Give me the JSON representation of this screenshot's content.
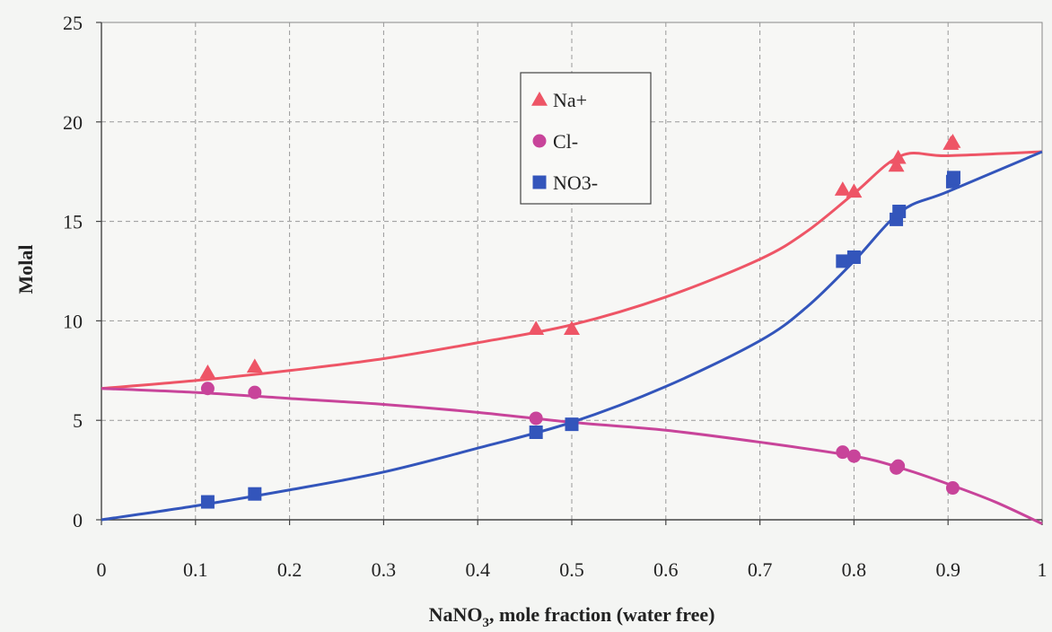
{
  "chart_data": {
    "type": "scatter",
    "xlabel": "NaNO",
    "xlabel_sub": "3",
    "xlabel_rest": ", mole fraction (water free)",
    "ylabel": "Molal",
    "xlim": [
      0,
      1
    ],
    "ylim": [
      0,
      25
    ],
    "x_ticks": [
      "0",
      "0.1",
      "0.2",
      "0.3",
      "0.4",
      "0.5",
      "0.6",
      "0.7",
      "0.8",
      "0.9",
      "1"
    ],
    "y_ticks": [
      "0",
      "5",
      "10",
      "15",
      "20",
      "25"
    ],
    "grid": true,
    "legend_position": "top-center",
    "series": [
      {
        "name": "Na+",
        "marker": "triangle",
        "color": "#ee5566",
        "points": [
          [
            0.113,
            7.4
          ],
          [
            0.163,
            7.7
          ],
          [
            0.462,
            9.6
          ],
          [
            0.5,
            9.6
          ],
          [
            0.788,
            16.6
          ],
          [
            0.8,
            16.5
          ],
          [
            0.845,
            17.8
          ],
          [
            0.847,
            18.2
          ],
          [
            0.903,
            18.9
          ],
          [
            0.905,
            19.0
          ]
        ],
        "curve": [
          [
            0,
            6.6
          ],
          [
            0.1,
            7.0
          ],
          [
            0.2,
            7.5
          ],
          [
            0.3,
            8.1
          ],
          [
            0.4,
            8.9
          ],
          [
            0.5,
            9.8
          ],
          [
            0.6,
            11.2
          ],
          [
            0.7,
            13.1
          ],
          [
            0.75,
            14.5
          ],
          [
            0.8,
            16.4
          ],
          [
            0.85,
            18.3
          ],
          [
            0.9,
            18.3
          ],
          [
            1.0,
            18.5
          ]
        ]
      },
      {
        "name": "Cl-",
        "marker": "circle",
        "color": "#c8449a",
        "points": [
          [
            0.113,
            6.6
          ],
          [
            0.163,
            6.4
          ],
          [
            0.462,
            5.1
          ],
          [
            0.788,
            3.4
          ],
          [
            0.8,
            3.2
          ],
          [
            0.845,
            2.6
          ],
          [
            0.847,
            2.7
          ],
          [
            0.905,
            1.6
          ]
        ],
        "curve": [
          [
            0,
            6.6
          ],
          [
            0.1,
            6.4
          ],
          [
            0.2,
            6.1
          ],
          [
            0.3,
            5.8
          ],
          [
            0.4,
            5.4
          ],
          [
            0.5,
            4.9
          ],
          [
            0.6,
            4.5
          ],
          [
            0.7,
            3.9
          ],
          [
            0.8,
            3.2
          ],
          [
            0.85,
            2.6
          ],
          [
            0.9,
            1.8
          ],
          [
            0.95,
            0.9
          ],
          [
            1.0,
            -0.2
          ]
        ]
      },
      {
        "name": "NO3-",
        "marker": "square",
        "color": "#3355bb",
        "points": [
          [
            0.113,
            0.9
          ],
          [
            0.163,
            1.3
          ],
          [
            0.462,
            4.4
          ],
          [
            0.5,
            4.8
          ],
          [
            0.788,
            13.0
          ],
          [
            0.8,
            13.2
          ],
          [
            0.845,
            15.1
          ],
          [
            0.848,
            15.5
          ],
          [
            0.905,
            17.0
          ],
          [
            0.906,
            17.2
          ]
        ],
        "curve": [
          [
            0,
            0.0
          ],
          [
            0.1,
            0.7
          ],
          [
            0.2,
            1.5
          ],
          [
            0.3,
            2.4
          ],
          [
            0.4,
            3.6
          ],
          [
            0.5,
            4.9
          ],
          [
            0.6,
            6.7
          ],
          [
            0.7,
            9.0
          ],
          [
            0.75,
            10.7
          ],
          [
            0.8,
            13.0
          ],
          [
            0.85,
            15.5
          ],
          [
            0.9,
            16.5
          ],
          [
            1.0,
            18.5
          ]
        ]
      }
    ]
  }
}
